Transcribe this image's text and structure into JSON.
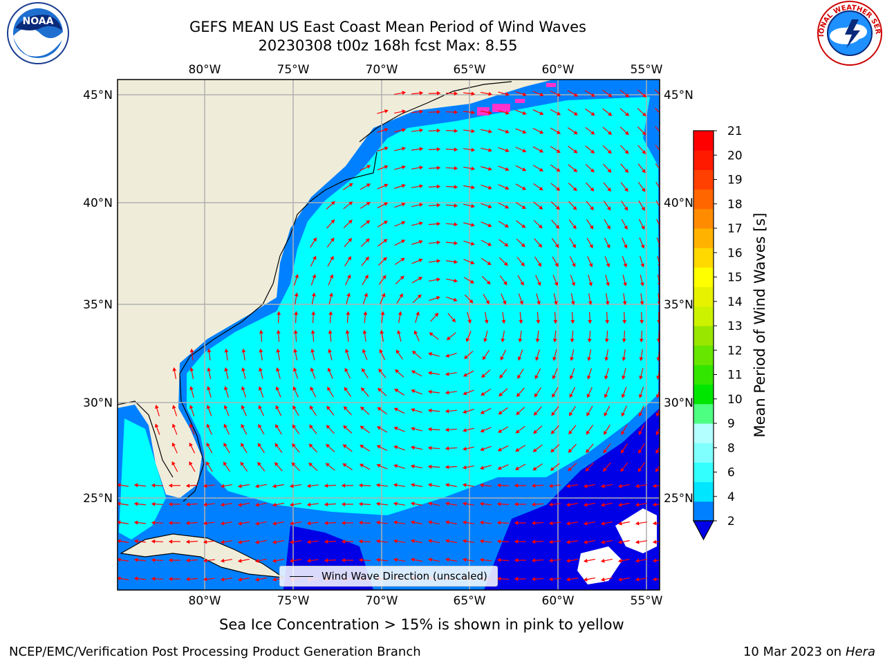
{
  "title_line1": "GEFS MEAN US East Coast Mean Period of Wind Waves",
  "title_line2": "20230308 t00z 168h fcst   Max: 8.55",
  "logos": {
    "left": {
      "icon": "noaa-logo-icon",
      "text": "NOAA"
    },
    "right": {
      "icon": "nws-logo-icon",
      "text": "NATIONAL WEATHER SERVICE"
    }
  },
  "map": {
    "lon_labels": [
      "80°W",
      "75°W",
      "70°W",
      "65°W",
      "60°W",
      "55°W"
    ],
    "lat_labels": [
      "45°N",
      "40°N",
      "35°N",
      "30°N",
      "25°N"
    ],
    "legend_label": "Wind Wave Direction (unscaled)",
    "colors": {
      "land": "#efedda",
      "ocean_light": "#00ffff",
      "ocean_mid": "#0080ff",
      "ocean_dark": "#0000e6",
      "arrow": "#ff0000",
      "grid": "#b0b0b0",
      "ice": "#ff33cc"
    }
  },
  "colorbar": {
    "label": "Mean Period of Wind Waves [s]",
    "ticks": [
      "2",
      "4",
      "6",
      "8",
      "9",
      "10",
      "11",
      "12",
      "13",
      "14",
      "15",
      "16",
      "17",
      "18",
      "19",
      "20",
      "21"
    ],
    "colors": [
      "#0080ff",
      "#00e6ff",
      "#33ffff",
      "#80ffff",
      "#b3ffff",
      "#4dff80",
      "#00e600",
      "#33e600",
      "#66e600",
      "#99e600",
      "#ccf200",
      "#e6f200",
      "#ffff00",
      "#ffd900",
      "#ffb300",
      "#ff8c00",
      "#ff6600",
      "#ff4000",
      "#ff1a00",
      "#ff0000"
    ],
    "under_color": "#0000e6"
  },
  "ice_note": "Sea Ice Concentration > 15% is shown in pink to yellow",
  "footer_left": "NCEP/EMC/Verification Post Processing Product Generation Branch",
  "footer_right_date": "10 Mar 2023 on",
  "footer_right_machine": "Hera"
}
